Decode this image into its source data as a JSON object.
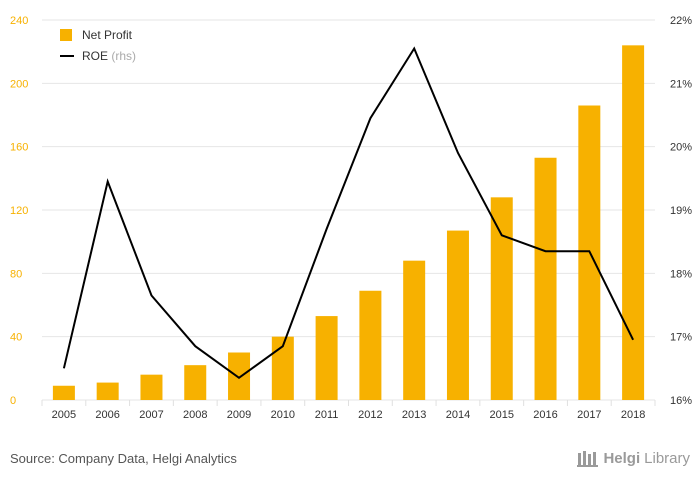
{
  "chart_data": {
    "type": "bar+line",
    "categories": [
      "2005",
      "2006",
      "2007",
      "2008",
      "2009",
      "2010",
      "2011",
      "2012",
      "2013",
      "2014",
      "2015",
      "2016",
      "2017",
      "2018"
    ],
    "series": [
      {
        "name": "Net Profit",
        "type": "bar",
        "axis": "left",
        "color": "#F7B100",
        "values": [
          9,
          11,
          16,
          22,
          30,
          40,
          53,
          69,
          88,
          107,
          128,
          153,
          186,
          224
        ]
      },
      {
        "name": "ROE",
        "name_suffix": " (rhs)",
        "type": "line",
        "axis": "right",
        "color": "#000000",
        "values": [
          16.5,
          19.45,
          17.65,
          16.85,
          16.35,
          16.85,
          18.7,
          20.45,
          21.55,
          19.9,
          18.6,
          18.35,
          18.35,
          16.95
        ]
      }
    ],
    "y_left": {
      "min": 0,
      "max": 240,
      "ticks": [
        0,
        40,
        80,
        120,
        160,
        200,
        240
      ],
      "color": "#F7B100"
    },
    "y_right": {
      "min": 16,
      "max": 22,
      "ticks": [
        16,
        17,
        18,
        19,
        20,
        21,
        22
      ],
      "tick_labels": [
        "16%",
        "17%",
        "18%",
        "19%",
        "20%",
        "21%",
        "22%"
      ]
    },
    "grid": true,
    "legend_position": "top-left"
  },
  "footer": {
    "source": "Source: Company Data, Helgi Analytics",
    "brand_part1": "Helgi",
    "brand_part2": "Library",
    "brand_icon": "library-icon"
  }
}
